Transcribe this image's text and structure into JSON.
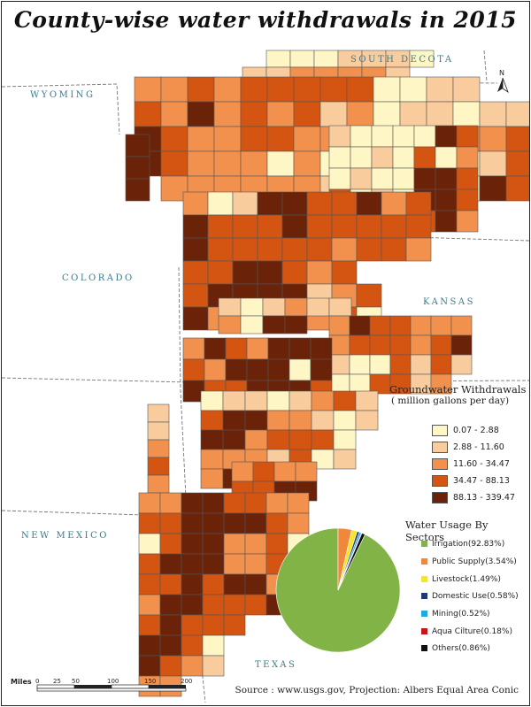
{
  "title": "County-wise water withdrawals in 2015",
  "state_labels": {
    "wyoming": "WYOMING",
    "south_dakota": "SOUTH DECOTA",
    "colorado": "COLORADO",
    "kansas": "KANSAS",
    "new_mexico": "NEW MEXICO",
    "texas": "TEXAS"
  },
  "north_arrow": {
    "label": "N"
  },
  "colors": {
    "class1": "#fef6c4",
    "class2": "#f9cc9e",
    "class3": "#f2904e",
    "class4": "#d45412",
    "class5": "#6a2208",
    "border": "#555555",
    "state_label": "#3a7a8a"
  },
  "legend": {
    "title_line1": "Groundwater Withdrawals",
    "title_line2": "( million gallons per day)",
    "classes": [
      {
        "label": "0.07 - 2.88",
        "color": "#fef6c4"
      },
      {
        "label": "2.88 - 11.60",
        "color": "#f9cc9e"
      },
      {
        "label": "11.60 - 34.47",
        "color": "#f2904e"
      },
      {
        "label": "34.47 - 88.13",
        "color": "#d45412"
      },
      {
        "label": "88.13 - 339.47",
        "color": "#6a2208"
      }
    ]
  },
  "sectors": {
    "title": "Water Usage By Sectors",
    "items": [
      {
        "label": "Irrigation(92.83%)",
        "value": 92.83,
        "color": "#82b346"
      },
      {
        "label": "Public Supply(3.54%)",
        "value": 3.54,
        "color": "#f0873a"
      },
      {
        "label": "Livestock(1.49%)",
        "value": 1.49,
        "color": "#f5e62a"
      },
      {
        "label": "Domestic Use(0.58%)",
        "value": 0.58,
        "color": "#1f3a6e"
      },
      {
        "label": "Mining(0.52%)",
        "value": 0.52,
        "color": "#22a7e0"
      },
      {
        "label": "Aqua Cilture(0.18%)",
        "value": 0.18,
        "color": "#c0181c"
      },
      {
        "label": "Others(0.86%)",
        "value": 0.86,
        "color": "#111111"
      }
    ]
  },
  "scale_bar": {
    "unit": "Miles",
    "ticks": [
      "0",
      "25",
      "50",
      "100",
      "150",
      "200"
    ]
  },
  "source": "Source : www.usgs.gov, Projection: Albers Equal Area Conic"
}
